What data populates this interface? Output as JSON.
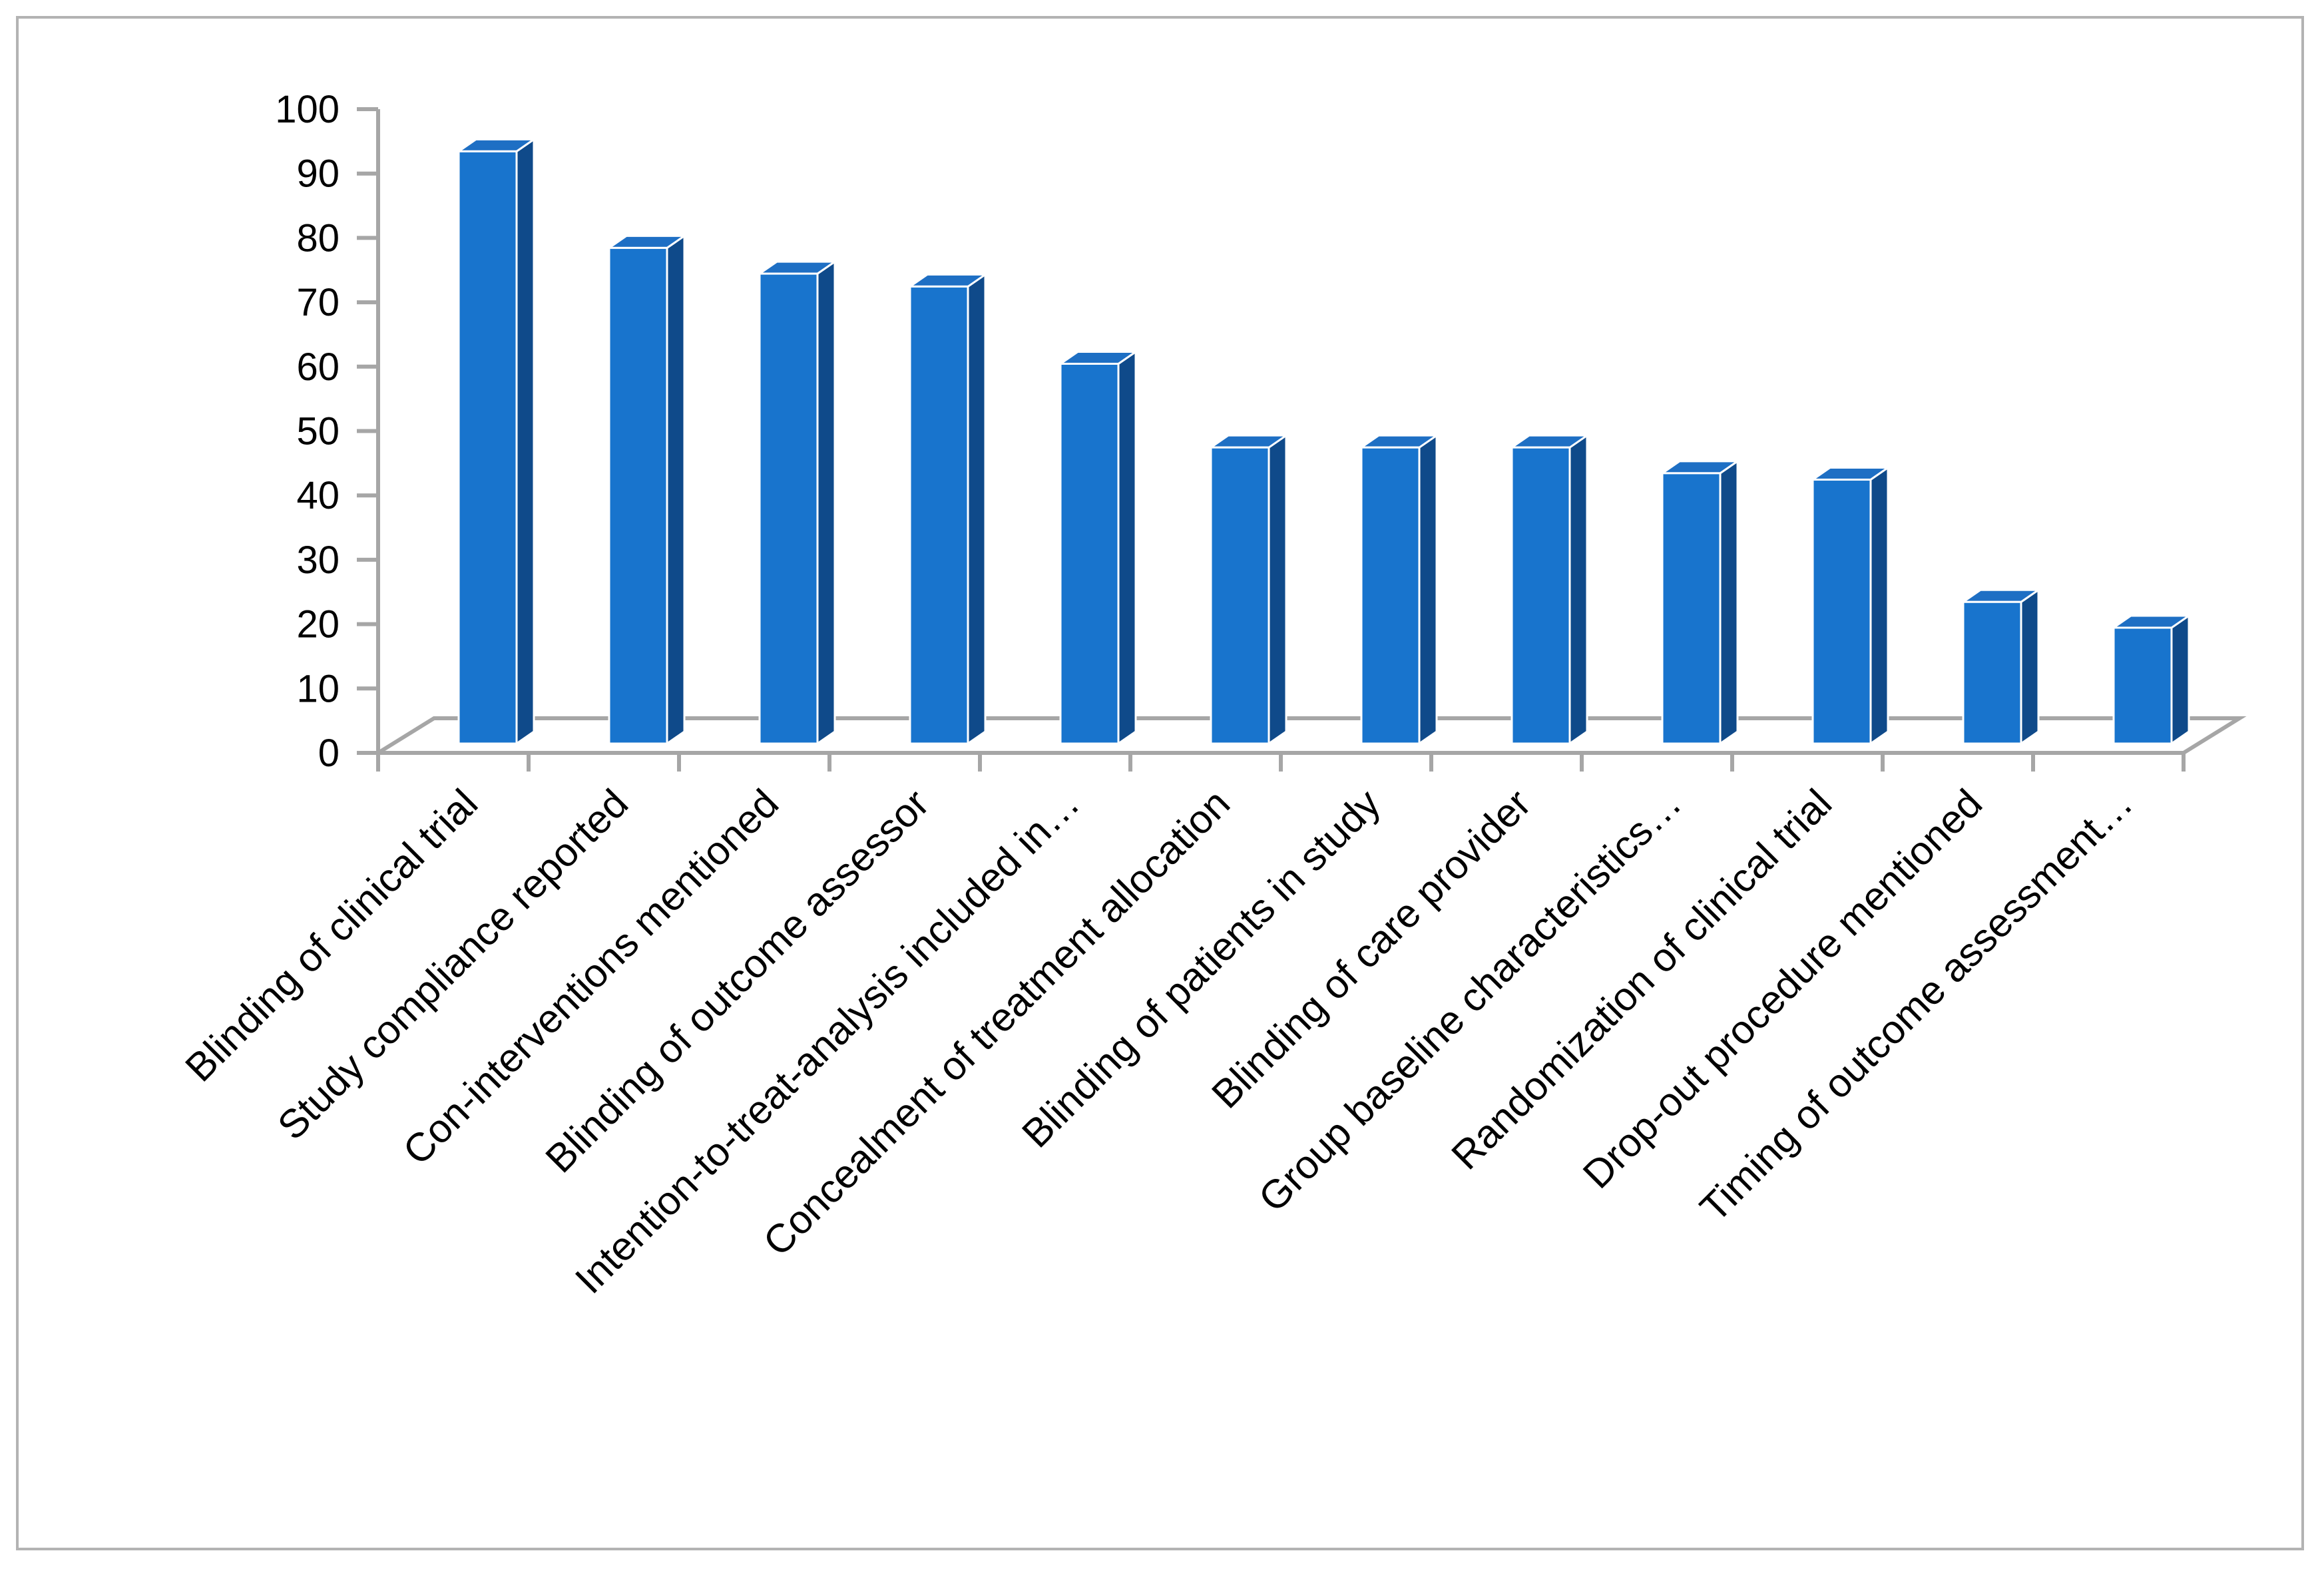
{
  "chart_data": {
    "type": "bar",
    "style": "3d-columns",
    "title": "",
    "xlabel": "",
    "ylabel": "",
    "ylim": [
      0,
      100
    ],
    "yticks": [
      0,
      10,
      20,
      30,
      40,
      50,
      60,
      70,
      80,
      90,
      100
    ],
    "grid": false,
    "legend": "none",
    "colors": {
      "front": "#1874cd",
      "side": "#0f4a8a",
      "top": "#1e6fc4",
      "floor": "#a6a6a6"
    },
    "categories": [
      "Blinding of clinical trial",
      "Study compliance reported",
      "Con-interventions mentioned",
      "Blinding of outcome assessor",
      "Intention-to-treat-analysis included in…",
      "Concealment of treatment allocation",
      "Blinding of patients in study",
      "Blinding of care provider",
      "Group baseline characteristics…",
      "Randomization of clinical trial",
      "Drop-out procedure mentioned",
      "Timing of outcome assessment…"
    ],
    "values": [
      92,
      77,
      73,
      71,
      59,
      46,
      46,
      46,
      42,
      41,
      22,
      18
    ]
  }
}
